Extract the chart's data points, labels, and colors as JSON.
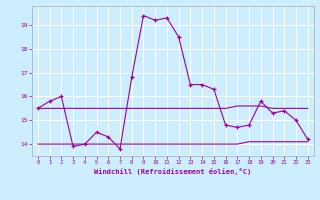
{
  "xlabel": "Windchill (Refroidissement éolien,°C)",
  "background_color": "#cceeff",
  "grid_color": "#ffffff",
  "line_color": "#990099",
  "hours": [
    0,
    1,
    2,
    3,
    4,
    5,
    6,
    7,
    8,
    9,
    10,
    11,
    12,
    13,
    14,
    15,
    16,
    17,
    18,
    19,
    20,
    21,
    22,
    23
  ],
  "windchill": [
    15.5,
    15.8,
    16.0,
    13.9,
    14.0,
    14.5,
    14.3,
    13.8,
    16.8,
    19.4,
    19.2,
    19.3,
    18.5,
    16.5,
    16.5,
    16.3,
    14.8,
    14.7,
    14.8,
    15.8,
    15.3,
    15.4,
    15.0,
    14.2
  ],
  "min_line": [
    14.0,
    14.0,
    14.0,
    14.0,
    14.0,
    14.0,
    14.0,
    14.0,
    14.0,
    14.0,
    14.0,
    14.0,
    14.0,
    14.0,
    14.0,
    14.0,
    14.0,
    14.0,
    14.1,
    14.1,
    14.1,
    14.1,
    14.1,
    14.1
  ],
  "max_line": [
    15.5,
    15.5,
    15.5,
    15.5,
    15.5,
    15.5,
    15.5,
    15.5,
    15.5,
    15.5,
    15.5,
    15.5,
    15.5,
    15.5,
    15.5,
    15.5,
    15.5,
    15.6,
    15.6,
    15.6,
    15.5,
    15.5,
    15.5,
    15.5
  ],
  "ylim": [
    13.5,
    19.8
  ],
  "yticks": [
    14,
    15,
    16,
    17,
    18,
    19
  ],
  "xticks": [
    0,
    1,
    2,
    3,
    4,
    5,
    6,
    7,
    8,
    9,
    10,
    11,
    12,
    13,
    14,
    15,
    16,
    17,
    18,
    19,
    20,
    21,
    22,
    23
  ]
}
